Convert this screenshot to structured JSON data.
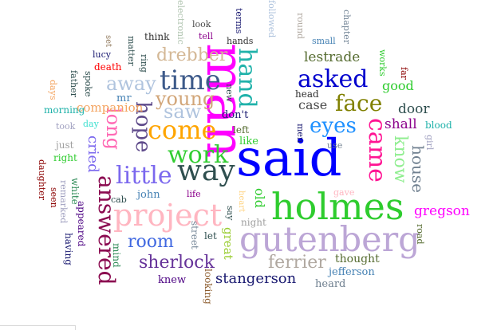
{
  "words": [
    {
      "text": "man",
      "color": "#ff00ff"
    },
    {
      "text": "said",
      "color": "#0000ff"
    },
    {
      "text": "holmes",
      "color": "#2ecc2e"
    },
    {
      "text": "gutenberg",
      "color": "#bca6d6"
    },
    {
      "text": "project",
      "color": "#ffb6c1"
    },
    {
      "text": "time",
      "color": "#3d5a8a"
    },
    {
      "text": "asked",
      "color": "#0000cd"
    },
    {
      "text": "hand",
      "color": "#20b2aa"
    },
    {
      "text": "came",
      "color": "#ff1493"
    },
    {
      "text": "come",
      "color": "#ffa500"
    },
    {
      "text": "way",
      "color": "#2f4f4f"
    },
    {
      "text": "work",
      "color": "#32cd32"
    },
    {
      "text": "little",
      "color": "#7b68ee"
    },
    {
      "text": "answered",
      "color": "#8b0a50"
    },
    {
      "text": "face",
      "color": "#808000"
    },
    {
      "text": "eyes",
      "color": "#1e90ff"
    },
    {
      "text": "hope",
      "color": "#5f4b8b"
    },
    {
      "text": "long",
      "color": "#ff69b4"
    },
    {
      "text": "young",
      "color": "#d2a679"
    },
    {
      "text": "saw",
      "color": "#b0c4de"
    },
    {
      "text": "away",
      "color": "#b0c4de"
    },
    {
      "text": "drebber",
      "color": "#d4b896"
    },
    {
      "text": "know",
      "color": "#90ee90"
    },
    {
      "text": "house",
      "color": "#708090"
    },
    {
      "text": "sherlock",
      "color": "#663399"
    },
    {
      "text": "room",
      "color": "#4169e1"
    },
    {
      "text": "ferrier",
      "color": "#b0a8a0"
    },
    {
      "text": "stangerson",
      "color": "#191970"
    },
    {
      "text": "cried",
      "color": "#7b68ee"
    },
    {
      "text": "gregson",
      "color": "#ff00ff"
    },
    {
      "text": "lestrade",
      "color": "#556b2f"
    },
    {
      "text": "shall",
      "color": "#8b008b"
    },
    {
      "text": "door",
      "color": "#2f4f4f"
    },
    {
      "text": "good",
      "color": "#2ecc2e"
    },
    {
      "text": "case",
      "color": "#4a4a4a"
    },
    {
      "text": "companion",
      "color": "#f4a460"
    },
    {
      "text": "don't",
      "color": "#191970"
    },
    {
      "text": "head",
      "color": "#2f2f2f"
    },
    {
      "text": "like",
      "color": "#32cd32"
    },
    {
      "text": "left",
      "color": "#556b2f"
    },
    {
      "text": "thought",
      "color": "#556b2f"
    },
    {
      "text": "jefferson",
      "color": "#4682b4"
    },
    {
      "text": "heard",
      "color": "#708090"
    },
    {
      "text": "knew",
      "color": "#4b0082"
    },
    {
      "text": "great",
      "color": "#9acd32"
    },
    {
      "text": "looking",
      "color": "#8b5a2b"
    },
    {
      "text": "street",
      "color": "#778899"
    },
    {
      "text": "let",
      "color": "#2f4f4f"
    },
    {
      "text": "mind",
      "color": "#2e8b57"
    },
    {
      "text": "appeared",
      "color": "#4b0082"
    },
    {
      "text": "white",
      "color": "#2e8b57"
    },
    {
      "text": "having",
      "color": "#191970"
    },
    {
      "text": "remarked",
      "color": "#a0a0c0"
    },
    {
      "text": "seen",
      "color": "#8b0000"
    },
    {
      "text": "daughter",
      "color": "#8b0000"
    },
    {
      "text": "right",
      "color": "#2ecc2e"
    },
    {
      "text": "just",
      "color": "#a0a0a0"
    },
    {
      "text": "morning",
      "color": "#20b2aa"
    },
    {
      "text": "days",
      "color": "#f4a460"
    },
    {
      "text": "took",
      "color": "#a0a0c0"
    },
    {
      "text": "day",
      "color": "#40e0d0"
    },
    {
      "text": "mr",
      "color": "#4682b4"
    },
    {
      "text": "father",
      "color": "#2f4f4f"
    },
    {
      "text": "spoke",
      "color": "#2f4f4f"
    },
    {
      "text": "lucy",
      "color": "#191970"
    },
    {
      "text": "death",
      "color": "#ff0000"
    },
    {
      "text": "ring",
      "color": "#2f4f4f"
    },
    {
      "text": "matter",
      "color": "#2f4f4f"
    },
    {
      "text": "set",
      "color": "#8b7355"
    },
    {
      "text": "think",
      "color": "#2f2f2f"
    },
    {
      "text": "tell",
      "color": "#8b008b"
    },
    {
      "text": "look",
      "color": "#4a4a4a"
    },
    {
      "text": "electronic",
      "color": "#b0c4b0"
    },
    {
      "text": "terms",
      "color": "#191970"
    },
    {
      "text": "hands",
      "color": "#2f2f2f"
    },
    {
      "text": "followed",
      "color": "#b0c4de"
    },
    {
      "text": "round",
      "color": "#b0a8a0"
    },
    {
      "text": "small",
      "color": "#4682b4"
    },
    {
      "text": "chapter",
      "color": "#778899"
    },
    {
      "text": "works",
      "color": "#2ecc2e"
    },
    {
      "text": "far",
      "color": "#8b0000"
    },
    {
      "text": "blood",
      "color": "#20b2aa"
    },
    {
      "text": "girl",
      "color": "#a0a0c0"
    },
    {
      "text": "men",
      "color": "#191970"
    },
    {
      "text": "use",
      "color": "#708090"
    },
    {
      "text": "gave",
      "color": "#ffb6c1"
    },
    {
      "text": "heart",
      "color": "#ffd27f"
    },
    {
      "text": "old",
      "color": "#2ecc2e"
    },
    {
      "text": "night",
      "color": "#a0a0a0"
    },
    {
      "text": "say",
      "color": "#2f4f4f"
    },
    {
      "text": "new",
      "color": "#2f4f4f"
    },
    {
      "text": "road",
      "color": "#556b2f"
    },
    {
      "text": "john",
      "color": "#4682b4"
    },
    {
      "text": "life",
      "color": "#8b008b"
    },
    {
      "text": "cab",
      "color": "#2f4f4f"
    }
  ]
}
